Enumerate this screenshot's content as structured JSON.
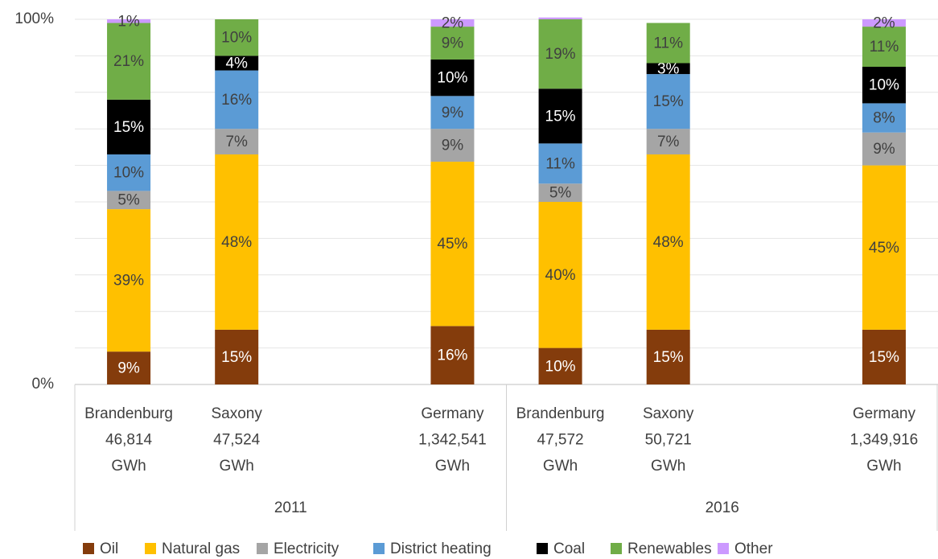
{
  "chart_data": {
    "type": "stacked_bar_100",
    "categories": [
      [
        "Brandenburg",
        "46,814",
        "GWh"
      ],
      [
        "Saxony",
        "47,524",
        "GWh"
      ],
      null,
      [
        "Germany",
        "1,342,541",
        "GWh"
      ],
      [
        "Brandenburg",
        "47,572",
        "GWh"
      ],
      [
        "Saxony",
        "50,721",
        "GWh"
      ],
      null,
      [
        "Germany",
        "1,349,916",
        "GWh"
      ]
    ],
    "group_labels": [
      "2011",
      "2016"
    ],
    "series": [
      {
        "name": "Oil",
        "color": "#843c0c",
        "label_color": "#ffffff",
        "values": [
          9,
          15,
          null,
          16,
          10,
          15,
          null,
          15
        ],
        "value_labels": [
          "9%",
          "15%",
          null,
          "16%",
          "10%",
          "15%",
          null,
          "15%"
        ]
      },
      {
        "name": "Natural gas",
        "color": "#ffc000",
        "label_color": "#404040",
        "values": [
          39,
          48,
          null,
          45,
          40,
          48,
          null,
          45
        ],
        "value_labels": [
          "39%",
          "48%",
          null,
          "45%",
          "40%",
          "48%",
          null,
          "45%"
        ]
      },
      {
        "name": "Electricity",
        "color": "#a5a5a5",
        "label_color": "#404040",
        "values": [
          5,
          7,
          null,
          9,
          5,
          7,
          null,
          9
        ],
        "value_labels": [
          "5%",
          "7%",
          null,
          "9%",
          "5%",
          "7%",
          null,
          "9%"
        ]
      },
      {
        "name": "District heating",
        "color": "#5b9bd5",
        "label_color": "#404040",
        "values": [
          10,
          16,
          null,
          9,
          11,
          15,
          null,
          8
        ],
        "value_labels": [
          "10%",
          "16%",
          null,
          "9%",
          "11%",
          "15%",
          null,
          "8%"
        ]
      },
      {
        "name": "Coal",
        "color": "#000000",
        "label_color": "#ffffff",
        "values": [
          15,
          4,
          null,
          10,
          15,
          3,
          null,
          10
        ],
        "value_labels": [
          "15%",
          "4%",
          null,
          "10%",
          "15%",
          "3%",
          null,
          "10%"
        ]
      },
      {
        "name": "Renewables",
        "color": "#70ad47",
        "label_color": "#404040",
        "values": [
          21,
          10,
          null,
          9,
          19,
          11,
          null,
          11
        ],
        "value_labels": [
          "21%",
          "10%",
          null,
          "9%",
          "19%",
          "11%",
          null,
          "11%"
        ]
      },
      {
        "name": "Other",
        "color": "#cc99ff",
        "label_color": "#404040",
        "values": [
          1,
          0,
          null,
          2,
          0.5,
          0,
          null,
          2
        ],
        "value_labels": [
          "1%",
          null,
          null,
          "2%",
          null,
          null,
          null,
          "2%"
        ]
      }
    ],
    "ylim": [
      0,
      100
    ],
    "yticks": [
      {
        "value": 0,
        "label": "0%"
      },
      {
        "value": 100,
        "label": "100%"
      }
    ],
    "minor_gridlines": [
      10,
      20,
      30,
      40,
      50,
      60,
      70,
      80,
      90
    ],
    "grid": true,
    "legend": "bottom"
  }
}
